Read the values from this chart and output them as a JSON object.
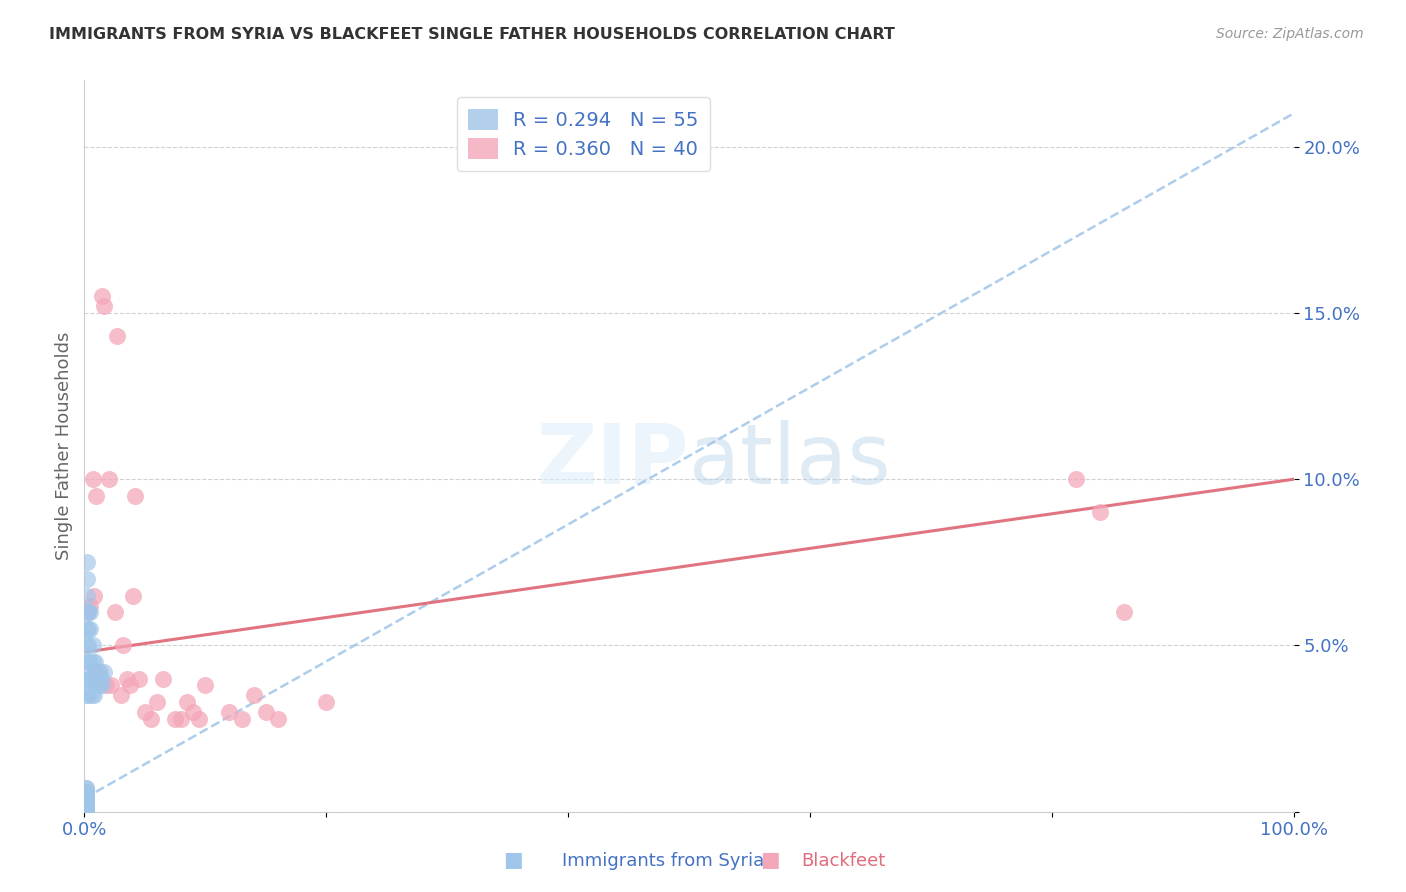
{
  "title": "IMMIGRANTS FROM SYRIA VS BLACKFEET SINGLE FATHER HOUSEHOLDS CORRELATION CHART",
  "source": "Source: ZipAtlas.com",
  "xlabel_label": "Immigrants from Syria",
  "ylabel_label": "Single Father Households",
  "legend_label1": "Immigrants from Syria",
  "legend_label2": "Blackfeet",
  "R1": 0.294,
  "N1": 55,
  "R2": 0.36,
  "N2": 40,
  "color_blue": "#9fc5e8",
  "color_pink": "#f4a7b9",
  "color_blue_line": "#9fc5e8",
  "color_pink_line": "#e06c7a",
  "color_axis_labels": "#4472c4",
  "xlim": [
    0,
    1.0
  ],
  "ylim": [
    0,
    0.22
  ],
  "x_ticks": [
    0.0,
    0.2,
    0.4,
    0.6,
    0.8,
    1.0
  ],
  "x_tick_labels": [
    "0.0%",
    "",
    "",
    "",
    "",
    "100.0%"
  ],
  "y_ticks": [
    0.0,
    0.05,
    0.1,
    0.15,
    0.2
  ],
  "y_tick_labels": [
    "",
    "5.0%",
    "10.0%",
    "15.0%",
    "20.0%"
  ],
  "blue_x": [
    0.001,
    0.001,
    0.001,
    0.001,
    0.001,
    0.001,
    0.001,
    0.001,
    0.001,
    0.001,
    0.001,
    0.001,
    0.001,
    0.001,
    0.001,
    0.001,
    0.001,
    0.001,
    0.001,
    0.001,
    0.001,
    0.002,
    0.002,
    0.002,
    0.002,
    0.002,
    0.002,
    0.002,
    0.002,
    0.002,
    0.003,
    0.003,
    0.003,
    0.003,
    0.003,
    0.003,
    0.004,
    0.004,
    0.005,
    0.005,
    0.006,
    0.006,
    0.007,
    0.007,
    0.008,
    0.008,
    0.009,
    0.01,
    0.01,
    0.011,
    0.012,
    0.013,
    0.014,
    0.015,
    0.016
  ],
  "blue_y": [
    0.0,
    0.0,
    0.001,
    0.001,
    0.002,
    0.002,
    0.002,
    0.003,
    0.003,
    0.003,
    0.003,
    0.004,
    0.004,
    0.004,
    0.005,
    0.005,
    0.005,
    0.006,
    0.006,
    0.007,
    0.007,
    0.035,
    0.04,
    0.045,
    0.05,
    0.055,
    0.06,
    0.065,
    0.07,
    0.075,
    0.035,
    0.04,
    0.045,
    0.05,
    0.055,
    0.06,
    0.04,
    0.045,
    0.055,
    0.06,
    0.035,
    0.04,
    0.045,
    0.05,
    0.035,
    0.04,
    0.045,
    0.038,
    0.042,
    0.04,
    0.038,
    0.042,
    0.04,
    0.038,
    0.042
  ],
  "pink_x": [
    0.003,
    0.005,
    0.007,
    0.008,
    0.01,
    0.011,
    0.013,
    0.015,
    0.016,
    0.018,
    0.02,
    0.022,
    0.025,
    0.027,
    0.03,
    0.032,
    0.035,
    0.038,
    0.04,
    0.042,
    0.045,
    0.05,
    0.055,
    0.06,
    0.065,
    0.075,
    0.08,
    0.085,
    0.09,
    0.095,
    0.1,
    0.12,
    0.13,
    0.14,
    0.15,
    0.16,
    0.2,
    0.82,
    0.84,
    0.86
  ],
  "pink_y": [
    0.06,
    0.062,
    0.1,
    0.065,
    0.095,
    0.042,
    0.04,
    0.155,
    0.152,
    0.038,
    0.1,
    0.038,
    0.06,
    0.143,
    0.035,
    0.05,
    0.04,
    0.038,
    0.065,
    0.095,
    0.04,
    0.03,
    0.028,
    0.033,
    0.04,
    0.028,
    0.028,
    0.033,
    0.03,
    0.028,
    0.038,
    0.03,
    0.028,
    0.035,
    0.03,
    0.028,
    0.033,
    0.1,
    0.09,
    0.06
  ],
  "blue_line_x0": 0.0,
  "blue_line_y0": 0.004,
  "blue_line_x1": 1.0,
  "blue_line_y1": 0.21,
  "pink_line_x0": 0.0,
  "pink_line_y0": 0.048,
  "pink_line_x1": 1.0,
  "pink_line_y1": 0.1
}
